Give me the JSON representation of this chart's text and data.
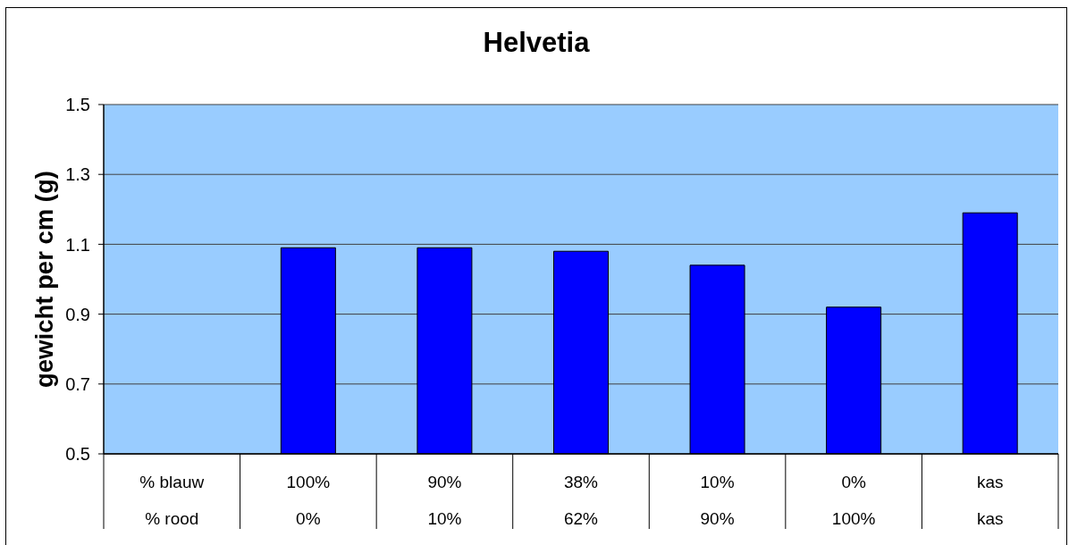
{
  "chart_data": {
    "type": "bar",
    "title": "Helvetia",
    "ylabel": "gewicht per cm (g)",
    "categories": [
      "% blauw\n% rood",
      "100%\n0%",
      "90%\n10%",
      "38%\n62%",
      "10%\n90%",
      "0%\n100%",
      "kas\nkas"
    ],
    "values": [
      null,
      1.09,
      1.09,
      1.08,
      1.04,
      0.92,
      1.19
    ],
    "color": "#0000ff",
    "ylim": [
      0.5,
      1.5
    ],
    "yticks": [
      0.5,
      0.7,
      0.9,
      1.1,
      1.3,
      1.5
    ],
    "grid": "y"
  }
}
